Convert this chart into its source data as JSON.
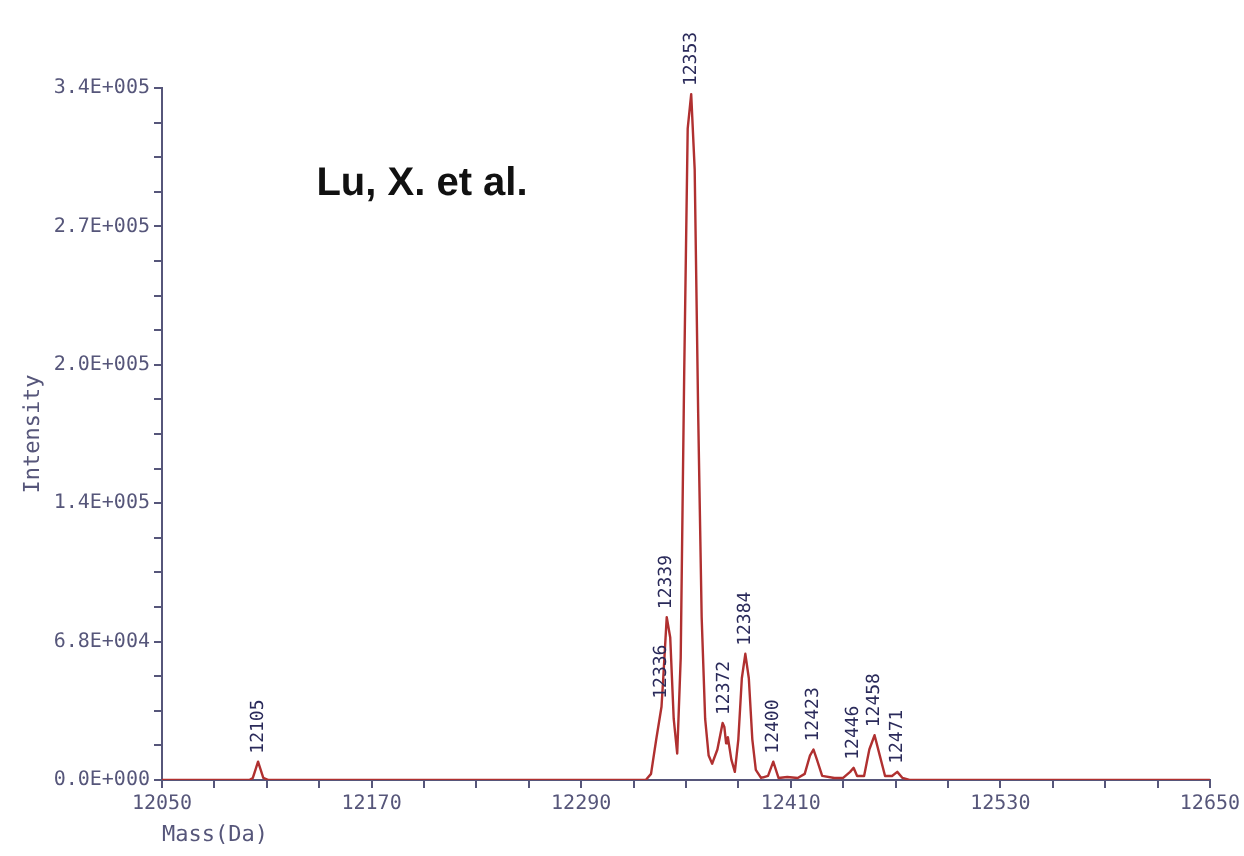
{
  "chart_data": {
    "type": "line",
    "xlabel": "Mass(Da)",
    "ylabel": "Intensity",
    "grid": false,
    "legend": false,
    "marker": "none",
    "line_style": "solid",
    "xlim": [
      12050,
      12650
    ],
    "xticks": [
      12050,
      {
        "value": 12080,
        "label": null
      },
      {
        "value": 12110,
        "label": null
      },
      {
        "value": 12140,
        "label": null
      },
      12170,
      {
        "value": 12200,
        "label": null
      },
      {
        "value": 12230,
        "label": null
      },
      {
        "value": 12260,
        "label": null
      },
      12290,
      {
        "value": 12320,
        "label": null
      },
      {
        "value": 12350,
        "label": null
      },
      {
        "value": 12380,
        "label": null
      },
      12410,
      {
        "value": 12440,
        "label": null
      },
      {
        "value": 12470,
        "label": null
      },
      {
        "value": 12500,
        "label": null
      },
      12530,
      {
        "value": 12560,
        "label": null
      },
      {
        "value": 12590,
        "label": null
      },
      {
        "value": 12620,
        "label": null
      },
      12650
    ],
    "ylim": [
      0,
      340000
    ],
    "yticks": [
      {
        "value": 0,
        "label": "0.0E+000"
      },
      {
        "value": 17000,
        "label": null
      },
      {
        "value": 34000,
        "label": null
      },
      {
        "value": 51000,
        "label": null
      },
      {
        "value": 68000,
        "label": "6.8E+004"
      },
      {
        "value": 85000,
        "label": null
      },
      {
        "value": 102000,
        "label": null
      },
      {
        "value": 119000,
        "label": null
      },
      {
        "value": 136000,
        "label": "1.4E+005"
      },
      {
        "value": 153000,
        "label": null
      },
      {
        "value": 170000,
        "label": null
      },
      {
        "value": 187000,
        "label": null
      },
      {
        "value": 204000,
        "label": "2.0E+005"
      },
      {
        "value": 221000,
        "label": null
      },
      {
        "value": 238000,
        "label": null
      },
      {
        "value": 255000,
        "label": null
      },
      {
        "value": 272000,
        "label": "2.7E+005"
      },
      {
        "value": 289000,
        "label": null
      },
      {
        "value": 306000,
        "label": null
      },
      {
        "value": 323000,
        "label": null
      },
      {
        "value": 340000,
        "label": "3.4E+005"
      }
    ],
    "series": [
      {
        "color": "#b03030",
        "x": [
          12050,
          12100,
          12102,
          12105,
          12108,
          12111,
          12327,
          12330,
          12333,
          12336,
          12337,
          12339,
          12341,
          12343,
          12345,
          12347,
          12349,
          12351,
          12353,
          12355,
          12357,
          12359,
          12361,
          12363,
          12365,
          12368,
          12371,
          12372,
          12373,
          12374,
          12376,
          12378,
          12380,
          12382,
          12384,
          12386,
          12388,
          12390,
          12393,
          12397,
          12400,
          12403,
          12408,
          12414,
          12418,
          12421,
          12423,
          12425,
          12428,
          12435,
          12440,
          12444,
          12446,
          12448,
          12452,
          12455,
          12458,
          12461,
          12464,
          12468,
          12471,
          12474,
          12478,
          12650
        ],
        "values": [
          0,
          0,
          1000,
          9000,
          1000,
          0,
          0,
          3000,
          20000,
          36000,
          50000,
          80000,
          70000,
          30000,
          13000,
          60000,
          200000,
          320000,
          337000,
          300000,
          180000,
          80000,
          30000,
          12000,
          8000,
          15000,
          28000,
          26000,
          18000,
          21000,
          10000,
          4000,
          20000,
          50000,
          62000,
          50000,
          20000,
          5000,
          1000,
          2000,
          9000,
          1000,
          1500,
          1000,
          3000,
          12000,
          15000,
          10000,
          2000,
          1000,
          1000,
          4000,
          6000,
          2000,
          2000,
          15000,
          22000,
          12000,
          2000,
          2000,
          4000,
          1000,
          0,
          0
        ]
      }
    ],
    "annotations": [
      "Lu, X. et al.",
      {
        "text": "12105",
        "x": 12105,
        "y": 9000
      },
      {
        "text": "12336",
        "x": 12336,
        "y": 36000
      },
      {
        "text": "12339",
        "x": 12339,
        "y": 80000
      },
      {
        "text": "12353",
        "x": 12353,
        "y": 337000
      },
      {
        "text": "12372",
        "x": 12372,
        "y": 28000
      },
      {
        "text": "12384",
        "x": 12384,
        "y": 62000
      },
      {
        "text": "12400",
        "x": 12400,
        "y": 9000
      },
      {
        "text": "12423",
        "x": 12423,
        "y": 15000
      },
      {
        "text": "12446",
        "x": 12446,
        "y": 6000
      },
      {
        "text": "12458",
        "x": 12458,
        "y": 22000
      },
      {
        "text": "12471",
        "x": 12471,
        "y": 4000
      }
    ]
  }
}
